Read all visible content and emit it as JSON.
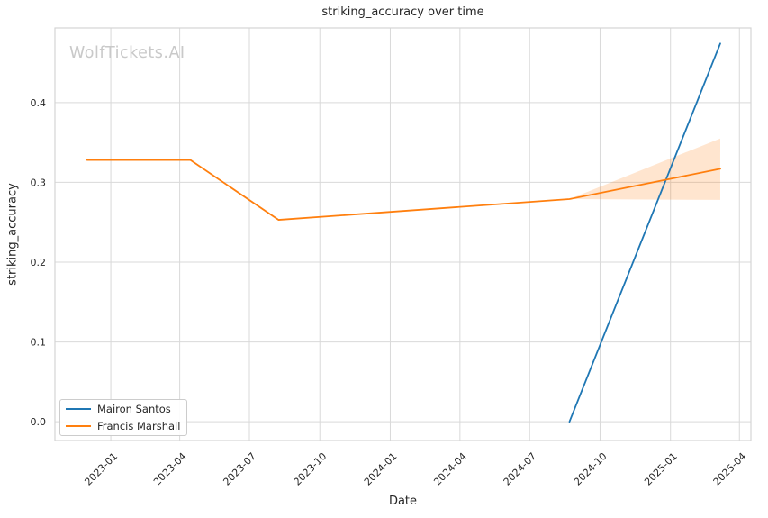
{
  "watermark": "WolfTickets.AI",
  "colors": {
    "background": "#ffffff",
    "grid": "#d9d9d9",
    "spine": "#d4d4d4",
    "text": "#262626",
    "tick_text": "#262626",
    "watermark": "#c9c9c9",
    "series_blue": "#1f77b4",
    "series_orange": "#ff7f0e"
  },
  "chart_data": {
    "type": "line",
    "title": "striking_accuracy over time",
    "xlabel": "Date",
    "ylabel": "striking_accuracy",
    "grid": true,
    "legend_position": "lower left",
    "x_domain": [
      "2022-10-20",
      "2025-04-16"
    ],
    "y_domain": [
      -0.0235,
      0.4935
    ],
    "y_ticks": [
      0.0,
      0.1,
      0.2,
      0.3,
      0.4
    ],
    "x_ticks": [
      {
        "date": "2023-01-01",
        "label": "2023-01"
      },
      {
        "date": "2023-04-01",
        "label": "2023-04"
      },
      {
        "date": "2023-07-01",
        "label": "2023-07"
      },
      {
        "date": "2023-10-01",
        "label": "2023-10"
      },
      {
        "date": "2024-01-01",
        "label": "2024-01"
      },
      {
        "date": "2024-04-01",
        "label": "2024-04"
      },
      {
        "date": "2024-07-01",
        "label": "2024-07"
      },
      {
        "date": "2024-10-01",
        "label": "2024-10"
      },
      {
        "date": "2025-01-01",
        "label": "2025-01"
      },
      {
        "date": "2025-04-01",
        "label": "2025-04"
      }
    ],
    "series": [
      {
        "name": "Mairon Santos",
        "color": "#1f77b4",
        "points": [
          {
            "date": "2024-08-22",
            "value": 0.0
          },
          {
            "date": "2025-03-07",
            "value": 0.474
          }
        ]
      },
      {
        "name": "Francis Marshall",
        "color": "#ff7f0e",
        "points": [
          {
            "date": "2022-12-01",
            "value": 0.328
          },
          {
            "date": "2023-04-15",
            "value": 0.328
          },
          {
            "date": "2023-08-08",
            "value": 0.253
          },
          {
            "date": "2024-08-22",
            "value": 0.279
          },
          {
            "date": "2025-03-07",
            "value": 0.317
          }
        ],
        "band": {
          "opacity": 0.2,
          "points": [
            {
              "date": "2024-08-22",
              "lower": 0.279,
              "upper": 0.279
            },
            {
              "date": "2025-03-07",
              "lower": 0.278,
              "upper": 0.355
            }
          ]
        }
      }
    ]
  }
}
